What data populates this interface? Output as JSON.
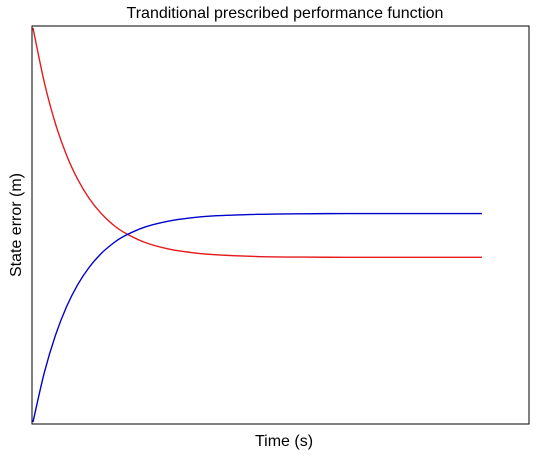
{
  "chart_data": {
    "type": "line",
    "title": "Tranditional prescribed performance function",
    "xlabel": "Time (s)",
    "ylabel": "State error (m)",
    "xlim": [
      0,
      10
    ],
    "ylim": [
      -1,
      1
    ],
    "xticks": [],
    "yticks": [],
    "grid": false,
    "legend": "none",
    "x": [
      0,
      0.25,
      0.5,
      0.75,
      1,
      1.25,
      1.5,
      1.75,
      2,
      2.5,
      3,
      3.5,
      4,
      5,
      6,
      7,
      8,
      9,
      10
    ],
    "series": [
      {
        "color": "#e41a1c",
        "values": [
          1.0,
          0.726,
          0.514,
          0.353,
          0.23,
          0.135,
          0.063,
          0.008,
          -0.034,
          -0.089,
          -0.121,
          -0.139,
          -0.15,
          -0.16,
          -0.163,
          -0.164,
          -0.164,
          -0.164,
          -0.164
        ]
      },
      {
        "color": "#0000cc",
        "values": [
          -1.0,
          -0.751,
          -0.56,
          -0.413,
          -0.301,
          -0.215,
          -0.149,
          -0.099,
          -0.06,
          -0.01,
          0.019,
          0.036,
          0.046,
          0.054,
          0.057,
          0.058,
          0.058,
          0.058,
          0.058
        ]
      }
    ]
  }
}
